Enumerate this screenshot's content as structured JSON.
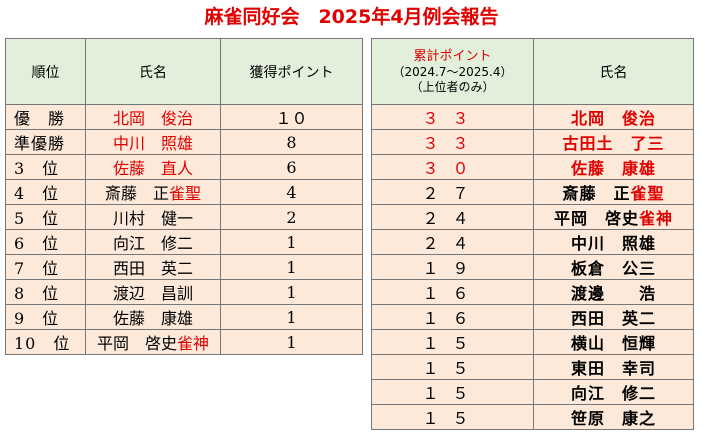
{
  "title": "麻雀同好会　2025年4月例会報告",
  "left_table": {
    "headers": [
      "順位",
      "氏名",
      "獲得ポイント"
    ],
    "rows": [
      {
        "rank": "優　勝",
        "name_a": "北岡　俊治",
        "name_b": "",
        "points": "１０",
        "red": true
      },
      {
        "rank": "準優勝",
        "name_a": "中川　照雄",
        "name_b": "",
        "points": "8",
        "red": true
      },
      {
        "rank": "3　位",
        "name_a": "佐藤　直人",
        "name_b": "",
        "points": "6",
        "red": true
      },
      {
        "rank": "4　位",
        "name_a": "斎藤　正",
        "name_b": "雀聖",
        "points": "4",
        "red": false
      },
      {
        "rank": "5　位",
        "name_a": "川村　健一",
        "name_b": "",
        "points": "2",
        "red": false
      },
      {
        "rank": "6　位",
        "name_a": "向江　修二",
        "name_b": "",
        "points": "1",
        "red": false
      },
      {
        "rank": "7　位",
        "name_a": "西田　英二",
        "name_b": "",
        "points": "1",
        "red": false
      },
      {
        "rank": "8　位",
        "name_a": "渡辺　昌訓",
        "name_b": "",
        "points": "1",
        "red": false
      },
      {
        "rank": "9　位",
        "name_a": "佐藤　康雄",
        "name_b": "",
        "points": "1",
        "red": false
      },
      {
        "rank": "10　位",
        "name_a": "平岡　啓史",
        "name_b": "雀神",
        "points": "1",
        "red": false
      }
    ]
  },
  "right_table": {
    "header_points_1": "累計ポイント",
    "header_points_2": "（2024.7～2025.4）",
    "header_points_3": "（上位者のみ）",
    "header_name": "氏名",
    "rows": [
      {
        "points": "３３",
        "name_a": "北岡　俊治",
        "name_b": "",
        "red": true
      },
      {
        "points": "３３",
        "name_a": "古田土　了三",
        "name_b": "",
        "red": true
      },
      {
        "points": "３０",
        "name_a": "佐藤　康雄",
        "name_b": "",
        "red": true
      },
      {
        "points": "２７",
        "name_a": "斎藤　正",
        "name_b": "雀聖",
        "red": false
      },
      {
        "points": "２４",
        "name_a": "平岡　啓史",
        "name_b": "雀神",
        "red": false
      },
      {
        "points": "２４",
        "name_a": "中川　照雄",
        "name_b": "",
        "red": false
      },
      {
        "points": "１９",
        "name_a": "板倉　公三",
        "name_b": "",
        "red": false
      },
      {
        "points": "１６",
        "name_a": "渡邊　　浩",
        "name_b": "",
        "red": false
      },
      {
        "points": "１６",
        "name_a": "西田　英二",
        "name_b": "",
        "red": false
      },
      {
        "points": "１５",
        "name_a": "横山　恒輝",
        "name_b": "",
        "red": false
      },
      {
        "points": "１５",
        "name_a": "東田　幸司",
        "name_b": "",
        "red": false
      },
      {
        "points": "１５",
        "name_a": "向江　修二",
        "name_b": "",
        "red": false
      },
      {
        "points": "１５",
        "name_a": "笹原　康之",
        "name_b": "",
        "red": false
      }
    ]
  },
  "colors": {
    "header_bg": "#e2efda",
    "row_bg": "#fde9d9",
    "accent_red": "#e00000"
  }
}
